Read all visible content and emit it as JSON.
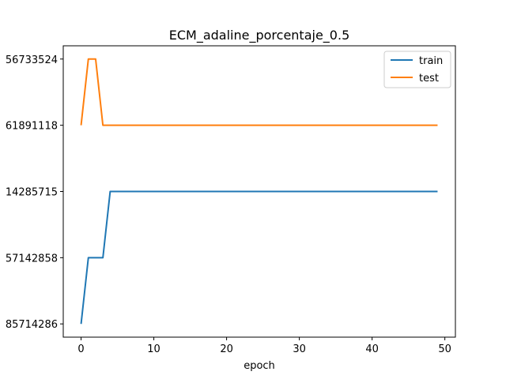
{
  "chart_data": {
    "type": "line",
    "title": "ECM_adaline_porcentaje_0.5",
    "xlabel": "epoch",
    "ylabel": "",
    "xlim": [
      -2.45,
      51.45
    ],
    "ylim": [
      -0.2,
      4.2
    ],
    "x_ticks": [
      0,
      10,
      20,
      30,
      40,
      50
    ],
    "y_ticks": [
      {
        "value": 0,
        "label": "85714286"
      },
      {
        "value": 1,
        "label": "57142858"
      },
      {
        "value": 2,
        "label": "14285715"
      },
      {
        "value": 3,
        "label": "61891118"
      },
      {
        "value": 4,
        "label": "56733524"
      }
    ],
    "legend_position": "upper right",
    "series": [
      {
        "name": "train",
        "color": "#1f77b4",
        "x": [
          0,
          1,
          2,
          3,
          4,
          5,
          6,
          7,
          8,
          9,
          10,
          11,
          12,
          13,
          14,
          15,
          16,
          17,
          18,
          19,
          20,
          21,
          22,
          23,
          24,
          25,
          26,
          27,
          28,
          29,
          30,
          31,
          32,
          33,
          34,
          35,
          36,
          37,
          38,
          39,
          40,
          41,
          42,
          43,
          44,
          45,
          46,
          47,
          48,
          49
        ],
        "y": [
          0,
          1,
          1,
          1,
          2,
          2,
          2,
          2,
          2,
          2,
          2,
          2,
          2,
          2,
          2,
          2,
          2,
          2,
          2,
          2,
          2,
          2,
          2,
          2,
          2,
          2,
          2,
          2,
          2,
          2,
          2,
          2,
          2,
          2,
          2,
          2,
          2,
          2,
          2,
          2,
          2,
          2,
          2,
          2,
          2,
          2,
          2,
          2,
          2,
          2
        ]
      },
      {
        "name": "test",
        "color": "#ff7f0e",
        "x": [
          0,
          1,
          2,
          3,
          4,
          5,
          6,
          7,
          8,
          9,
          10,
          11,
          12,
          13,
          14,
          15,
          16,
          17,
          18,
          19,
          20,
          21,
          22,
          23,
          24,
          25,
          26,
          27,
          28,
          29,
          30,
          31,
          32,
          33,
          34,
          35,
          36,
          37,
          38,
          39,
          40,
          41,
          42,
          43,
          44,
          45,
          46,
          47,
          48,
          49
        ],
        "y": [
          3,
          4,
          4,
          3,
          3,
          3,
          3,
          3,
          3,
          3,
          3,
          3,
          3,
          3,
          3,
          3,
          3,
          3,
          3,
          3,
          3,
          3,
          3,
          3,
          3,
          3,
          3,
          3,
          3,
          3,
          3,
          3,
          3,
          3,
          3,
          3,
          3,
          3,
          3,
          3,
          3,
          3,
          3,
          3,
          3,
          3,
          3,
          3,
          3,
          3
        ]
      }
    ]
  }
}
